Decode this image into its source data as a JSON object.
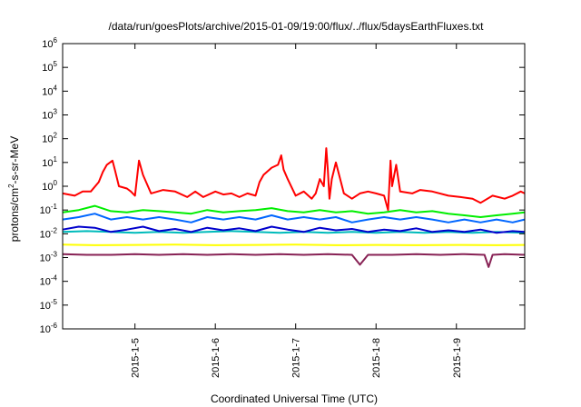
{
  "chart_data": {
    "type": "line",
    "title": "/data/run/goesPlots/archive/2015-01-09/19:00/flux/../flux/5daysEarthFluxes.txt",
    "xlabel": "Coordinated Universal Time (UTC)",
    "ylabel_parts": [
      "protons/cm",
      "2",
      "-s-sr-MeV"
    ],
    "y_scale": "log",
    "ylim": [
      1e-06,
      1000000.0
    ],
    "y_ticks": [
      {
        "base": "10",
        "exp": "6",
        "value": 6
      },
      {
        "base": "10",
        "exp": "5",
        "value": 5
      },
      {
        "base": "10",
        "exp": "4",
        "value": 4
      },
      {
        "base": "10",
        "exp": "3",
        "value": 3
      },
      {
        "base": "10",
        "exp": "2",
        "value": 2
      },
      {
        "base": "10",
        "exp": "1",
        "value": 1
      },
      {
        "base": "10",
        "exp": "0",
        "value": 0
      },
      {
        "base": "10",
        "exp": "-1",
        "value": -1
      },
      {
        "base": "10",
        "exp": "-2",
        "value": -2
      },
      {
        "base": "10",
        "exp": "-3",
        "value": -3
      },
      {
        "base": "10",
        "exp": "-4",
        "value": -4
      },
      {
        "base": "10",
        "exp": "-5",
        "value": -5
      },
      {
        "base": "10",
        "exp": "-6",
        "value": -6
      }
    ],
    "x_range_days": [
      4.1,
      9.85
    ],
    "x_ticks": [
      {
        "label": "2015-1-5",
        "day": 5
      },
      {
        "label": "2015-1-6",
        "day": 6
      },
      {
        "label": "2015-1-7",
        "day": 7
      },
      {
        "label": "2015-1-8",
        "day": 8
      },
      {
        "label": "2015-1-9",
        "day": 9
      }
    ],
    "grid": false,
    "legend": "none",
    "series": [
      {
        "color": "#ff0000",
        "x": [
          4.1,
          4.25,
          4.35,
          4.45,
          4.55,
          4.6,
          4.65,
          4.72,
          4.75,
          4.8,
          4.9,
          4.95,
          5.0,
          5.05,
          5.1,
          5.2,
          5.35,
          5.5,
          5.65,
          5.75,
          5.85,
          6.0,
          6.1,
          6.2,
          6.3,
          6.4,
          6.5,
          6.55,
          6.6,
          6.7,
          6.78,
          6.82,
          6.85,
          6.9,
          7.0,
          7.1,
          7.2,
          7.25,
          7.3,
          7.35,
          7.38,
          7.4,
          7.42,
          7.45,
          7.5,
          7.6,
          7.7,
          7.8,
          7.9,
          8.0,
          8.1,
          8.15,
          8.18,
          8.2,
          8.25,
          8.3,
          8.45,
          8.55,
          8.7,
          8.9,
          9.05,
          9.2,
          9.3,
          9.45,
          9.6,
          9.7,
          9.8,
          9.85
        ],
        "y": [
          0.5,
          0.4,
          0.6,
          0.6,
          1.5,
          4,
          8,
          12,
          5,
          1,
          0.8,
          0.6,
          0.4,
          12,
          3,
          0.5,
          0.7,
          0.6,
          0.35,
          0.6,
          0.35,
          0.6,
          0.45,
          0.5,
          0.35,
          0.5,
          0.4,
          1.5,
          3,
          6,
          8,
          20,
          5,
          2,
          0.4,
          0.6,
          0.3,
          0.5,
          2,
          1,
          40,
          5,
          0.3,
          2,
          10,
          0.5,
          0.3,
          0.5,
          0.6,
          0.5,
          0.4,
          0.1,
          12,
          1,
          8,
          0.6,
          0.5,
          0.7,
          0.6,
          0.4,
          0.35,
          0.3,
          0.2,
          0.4,
          0.3,
          0.4,
          0.6,
          0.5
        ]
      },
      {
        "color": "#00ee00",
        "x": [
          4.1,
          4.3,
          4.5,
          4.7,
          4.9,
          5.1,
          5.3,
          5.5,
          5.7,
          5.9,
          6.1,
          6.3,
          6.5,
          6.7,
          6.9,
          7.1,
          7.3,
          7.5,
          7.7,
          7.9,
          8.1,
          8.3,
          8.5,
          8.7,
          8.9,
          9.1,
          9.3,
          9.5,
          9.7,
          9.85
        ],
        "y": [
          0.08,
          0.1,
          0.15,
          0.09,
          0.08,
          0.1,
          0.09,
          0.08,
          0.07,
          0.1,
          0.08,
          0.09,
          0.1,
          0.12,
          0.09,
          0.08,
          0.1,
          0.08,
          0.09,
          0.07,
          0.08,
          0.1,
          0.08,
          0.09,
          0.07,
          0.06,
          0.05,
          0.06,
          0.07,
          0.08
        ]
      },
      {
        "color": "#0066ff",
        "x": [
          4.1,
          4.3,
          4.5,
          4.7,
          4.9,
          5.1,
          5.3,
          5.5,
          5.7,
          5.9,
          6.1,
          6.3,
          6.5,
          6.7,
          6.9,
          7.1,
          7.3,
          7.5,
          7.7,
          7.9,
          8.1,
          8.3,
          8.5,
          8.7,
          8.9,
          9.1,
          9.3,
          9.5,
          9.7,
          9.85
        ],
        "y": [
          0.04,
          0.05,
          0.07,
          0.04,
          0.05,
          0.04,
          0.05,
          0.04,
          0.03,
          0.05,
          0.04,
          0.05,
          0.04,
          0.06,
          0.04,
          0.05,
          0.04,
          0.05,
          0.03,
          0.04,
          0.05,
          0.04,
          0.05,
          0.04,
          0.03,
          0.04,
          0.03,
          0.04,
          0.03,
          0.04
        ]
      },
      {
        "color": "#00bbbb",
        "x": [
          4.1,
          4.4,
          4.7,
          5.0,
          5.3,
          5.6,
          5.9,
          6.2,
          6.5,
          6.8,
          7.1,
          7.4,
          7.7,
          8.0,
          8.3,
          8.6,
          8.9,
          9.2,
          9.5,
          9.85
        ],
        "y": [
          0.012,
          0.013,
          0.012,
          0.011,
          0.012,
          0.011,
          0.012,
          0.013,
          0.012,
          0.011,
          0.012,
          0.011,
          0.012,
          0.011,
          0.012,
          0.011,
          0.012,
          0.011,
          0.012,
          0.011
        ]
      },
      {
        "color": "#0000cc",
        "x": [
          4.1,
          4.3,
          4.5,
          4.7,
          4.9,
          5.1,
          5.3,
          5.5,
          5.7,
          5.9,
          6.1,
          6.3,
          6.5,
          6.7,
          6.9,
          7.1,
          7.3,
          7.5,
          7.7,
          7.9,
          8.1,
          8.3,
          8.5,
          8.7,
          8.9,
          9.1,
          9.3,
          9.5,
          9.7,
          9.85
        ],
        "y": [
          0.015,
          0.02,
          0.018,
          0.012,
          0.015,
          0.02,
          0.013,
          0.016,
          0.012,
          0.018,
          0.014,
          0.017,
          0.013,
          0.02,
          0.015,
          0.012,
          0.018,
          0.014,
          0.016,
          0.012,
          0.015,
          0.013,
          0.017,
          0.012,
          0.014,
          0.012,
          0.015,
          0.011,
          0.013,
          0.012
        ]
      },
      {
        "color": "#ffff00",
        "x": [
          4.1,
          4.5,
          5.0,
          5.5,
          6.0,
          6.5,
          7.0,
          7.5,
          8.0,
          8.5,
          9.0,
          9.5,
          9.85
        ],
        "y": [
          0.0035,
          0.0033,
          0.0034,
          0.0035,
          0.0033,
          0.0034,
          0.0035,
          0.0033,
          0.0034,
          0.0033,
          0.0034,
          0.0033,
          0.0034
        ]
      },
      {
        "color": "#882255",
        "x": [
          4.1,
          4.4,
          4.7,
          5.0,
          5.3,
          5.6,
          5.9,
          6.2,
          6.5,
          6.8,
          7.1,
          7.4,
          7.7,
          7.8,
          7.9,
          8.2,
          8.5,
          8.8,
          9.1,
          9.35,
          9.4,
          9.45,
          9.6,
          9.85
        ],
        "y": [
          0.0014,
          0.0013,
          0.0013,
          0.0014,
          0.0013,
          0.0014,
          0.0013,
          0.0014,
          0.0013,
          0.0014,
          0.0013,
          0.0014,
          0.0013,
          0.0005,
          0.0013,
          0.0013,
          0.0014,
          0.0013,
          0.0014,
          0.0013,
          0.0004,
          0.0013,
          0.0014,
          0.0013
        ]
      }
    ]
  }
}
